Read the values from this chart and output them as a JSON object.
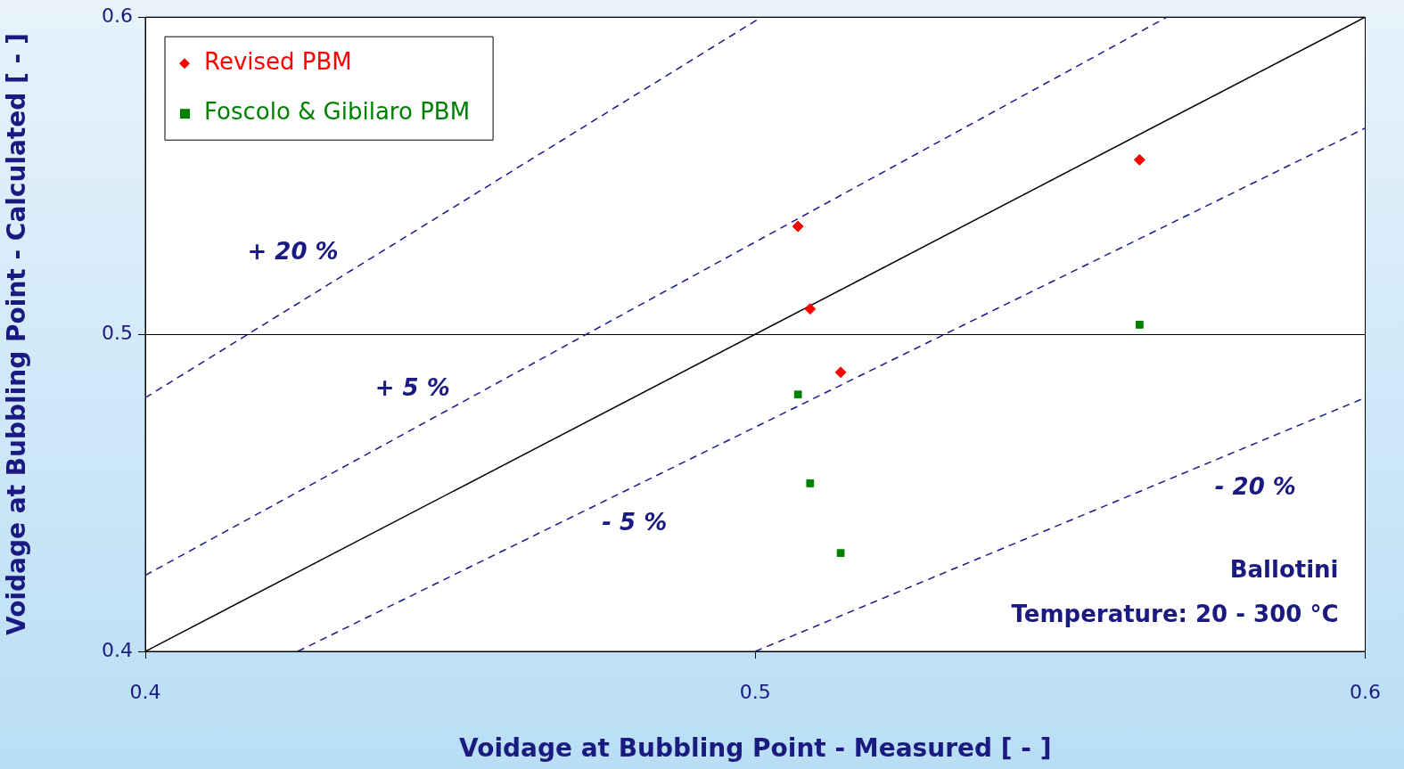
{
  "chart_data": {
    "type": "scatter",
    "xlabel": "Voidage at Bubbling Point - Measured [ - ]",
    "ylabel": "Voidage at Bubbling Point - Calculated [ - ]",
    "xlim": [
      0.4,
      0.6
    ],
    "ylim": [
      0.4,
      0.6
    ],
    "xticks": [
      0.4,
      0.5,
      0.6
    ],
    "yticks": [
      0.4,
      0.5,
      0.6
    ],
    "grid": "y",
    "legend": "top left",
    "series": [
      {
        "name": "Revised PBM",
        "color": "#ff0000",
        "marker": "diamond",
        "x": [
          0.507,
          0.509,
          0.514,
          0.563
        ],
        "values": [
          0.534,
          0.508,
          0.488,
          0.555
        ]
      },
      {
        "name": "Foscolo & Gibilaro PBM",
        "color": "#008000",
        "marker": "square",
        "x": [
          0.507,
          0.509,
          0.514,
          0.563
        ],
        "values": [
          0.481,
          0.453,
          0.431,
          0.503
        ]
      },
      {
        "type": "line",
        "color": "#000000",
        "line_style": "solid",
        "marker": "none",
        "x": [
          0.4,
          0.6
        ],
        "values": [
          0.4,
          0.6
        ]
      },
      {
        "type": "line",
        "color": "#1a1a8c",
        "line_style": "dashed",
        "marker": "none",
        "x": [
          0.4,
          0.5675
        ],
        "values": [
          0.424,
          0.6
        ]
      },
      {
        "type": "line",
        "color": "#1a1a8c",
        "line_style": "dashed",
        "marker": "none",
        "x": [
          0.425,
          0.6
        ],
        "values": [
          0.4,
          0.565
        ]
      },
      {
        "type": "line",
        "color": "#1a1a8c",
        "line_style": "dashed",
        "marker": "none",
        "x": [
          0.4,
          0.501
        ],
        "values": [
          0.48,
          0.6
        ]
      },
      {
        "type": "line",
        "color": "#1a1a8c",
        "line_style": "dashed",
        "marker": "none",
        "x": [
          0.5,
          0.6
        ],
        "values": [
          0.4,
          0.48
        ]
      }
    ],
    "annotations": [
      "+ 20 %",
      "+ 5 %",
      "- 5 %",
      "- 20 %",
      "Ballotini",
      "Temperature: 20 - 300 °C"
    ]
  }
}
